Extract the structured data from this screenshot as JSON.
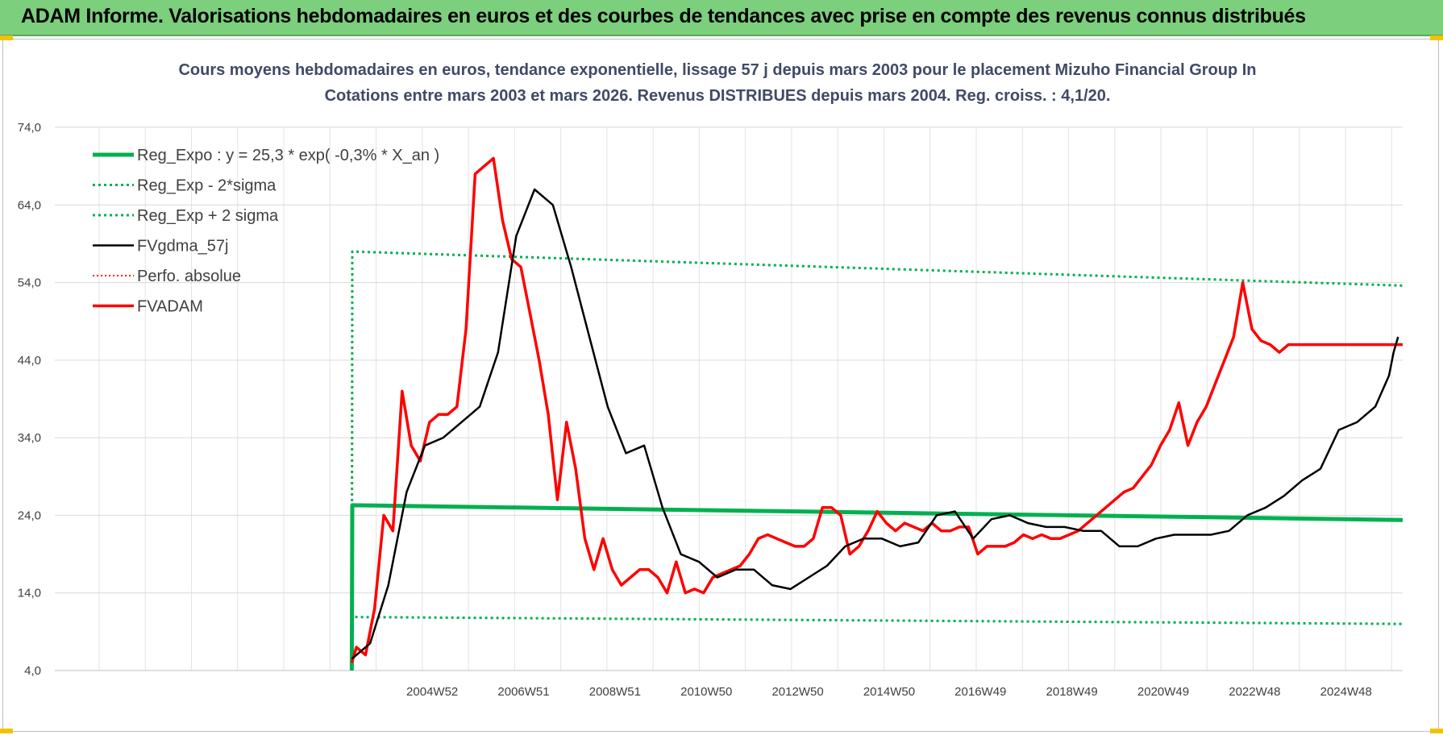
{
  "banner": {
    "title": "ADAM Informe. Valorisations hebdomadaires en euros et des courbes de tendances avec prise en compte des revenus connus distribués"
  },
  "colors": {
    "banner_bg": "#7ccf7c",
    "reg_expo": "#00b050",
    "sigma": "#00b050",
    "fvgdma": "#000000",
    "perfo": "#ff0000",
    "fvadam": "#ff0000"
  },
  "chart_data": {
    "type": "line",
    "title": "Cours moyens hebdomadaires en euros, tendance exponentielle, lissage 57 j depuis mars 2003 pour le placement Mizuho Financial Group In",
    "subtitle": "Cotations entre mars 2003 et mars 2026. Revenus DISTRIBUES depuis mars 2004. Reg. croiss. : 4,1/20.",
    "xlabel": "",
    "ylabel": "",
    "ylim": [
      4,
      74
    ],
    "y_ticks": [
      "4,0",
      "14,0",
      "24,0",
      "34,0",
      "44,0",
      "54,0",
      "64,0",
      "74,0"
    ],
    "x_ticks": [
      "2004W52",
      "2006W51",
      "2008W51",
      "2010W50",
      "2012W50",
      "2014W50",
      "2016W49",
      "2018W49",
      "2020W49",
      "2022W48",
      "2024W48"
    ],
    "x_range": [
      1996.7,
      2026.2
    ],
    "grid": true,
    "legend_position": "top-left",
    "series": [
      {
        "name": "Reg_Expo : y = 25,3 * exp( -0,3% *  X_an )",
        "style": "solid-thick",
        "x": [
          2003.2,
          2003.21,
          2026.2
        ],
        "y": [
          4.0,
          25.3,
          23.4
        ]
      },
      {
        "name": "Reg_Exp - 2*sigma",
        "style": "dotted",
        "x": [
          2003.2,
          2003.21,
          2026.2
        ],
        "y": [
          4.0,
          10.9,
          10.0
        ]
      },
      {
        "name": "Reg_Exp + 2 sigma",
        "style": "dotted",
        "x": [
          2003.2,
          2003.21,
          2026.2
        ],
        "y": [
          4.0,
          58.0,
          53.6
        ]
      },
      {
        "name": "FVgdma_57j",
        "style": "solid-thin",
        "x": [
          2003.2,
          2003.6,
          2004.0,
          2004.4,
          2004.8,
          2005.2,
          2005.6,
          2006.0,
          2006.4,
          2006.8,
          2007.2,
          2007.6,
          2008.0,
          2008.4,
          2008.8,
          2009.2,
          2009.6,
          2010.0,
          2010.4,
          2010.8,
          2011.2,
          2011.6,
          2012.0,
          2012.4,
          2012.8,
          2013.2,
          2013.6,
          2014.0,
          2014.4,
          2014.8,
          2015.2,
          2015.6,
          2016.0,
          2016.4,
          2016.8,
          2017.2,
          2017.6,
          2018.0,
          2018.4,
          2018.8,
          2019.2,
          2019.6,
          2020.0,
          2020.4,
          2020.8,
          2021.2,
          2021.6,
          2022.0,
          2022.4,
          2022.8,
          2023.2,
          2023.6,
          2024.0,
          2024.4,
          2024.8,
          2025.2,
          2025.6,
          2025.9,
          2026.0,
          2026.1
        ],
        "y": [
          5.5,
          7.5,
          15.0,
          27.0,
          33.0,
          34.0,
          36.0,
          38.0,
          45.0,
          60.0,
          66.0,
          64.0,
          56.0,
          47.0,
          38.0,
          32.0,
          33.0,
          25.0,
          19.0,
          18.0,
          16.0,
          17.0,
          17.0,
          15.0,
          14.5,
          16.0,
          17.5,
          20.0,
          21.0,
          21.0,
          20.0,
          20.5,
          24.0,
          24.5,
          21.0,
          23.5,
          24.0,
          23.0,
          22.5,
          22.5,
          22.0,
          22.0,
          20.0,
          20.0,
          21.0,
          21.5,
          21.5,
          21.5,
          22.0,
          24.0,
          25.0,
          26.5,
          28.5,
          30.0,
          35.0,
          36.0,
          38.0,
          42.0,
          45.0,
          47.0
        ]
      },
      {
        "name": "Perfo. absolue",
        "style": "dotted-red",
        "x": [],
        "y": []
      },
      {
        "name": "FVADAM",
        "style": "solid-red",
        "x": [
          2003.2,
          2003.3,
          2003.5,
          2003.7,
          2003.9,
          2004.1,
          2004.3,
          2004.5,
          2004.7,
          2004.9,
          2005.1,
          2005.3,
          2005.5,
          2005.7,
          2005.9,
          2006.1,
          2006.3,
          2006.5,
          2006.7,
          2006.9,
          2007.1,
          2007.3,
          2007.5,
          2007.7,
          2007.9,
          2008.1,
          2008.3,
          2008.5,
          2008.7,
          2008.9,
          2009.1,
          2009.3,
          2009.5,
          2009.7,
          2009.9,
          2010.1,
          2010.3,
          2010.5,
          2010.7,
          2010.9,
          2011.1,
          2011.3,
          2011.5,
          2011.7,
          2011.9,
          2012.1,
          2012.3,
          2012.5,
          2012.7,
          2012.9,
          2013.1,
          2013.3,
          2013.5,
          2013.7,
          2013.9,
          2014.1,
          2014.3,
          2014.5,
          2014.7,
          2014.9,
          2015.1,
          2015.3,
          2015.5,
          2015.7,
          2015.9,
          2016.1,
          2016.3,
          2016.5,
          2016.7,
          2016.9,
          2017.1,
          2017.3,
          2017.5,
          2017.7,
          2017.9,
          2018.1,
          2018.3,
          2018.5,
          2018.7,
          2018.9,
          2019.1,
          2019.3,
          2019.5,
          2019.7,
          2019.9,
          2020.1,
          2020.3,
          2020.5,
          2020.7,
          2020.9,
          2021.1,
          2021.3,
          2021.5,
          2021.7,
          2021.9,
          2022.1,
          2022.3,
          2022.5,
          2022.7,
          2022.9,
          2023.1,
          2023.3,
          2023.5,
          2023.7,
          2023.9,
          2024.1,
          2024.3,
          2024.5,
          2024.7,
          2024.9,
          2025.1,
          2025.3,
          2025.5,
          2025.7,
          2025.9,
          2026.0,
          2026.05,
          2026.1,
          2026.2
        ],
        "y": [
          5.0,
          7.0,
          6.0,
          12.0,
          24.0,
          22.0,
          40.0,
          33.0,
          31.0,
          36.0,
          37.0,
          37.0,
          38.0,
          48.0,
          68.0,
          69.0,
          70.0,
          62.0,
          57.0,
          56.0,
          50.0,
          44.0,
          37.0,
          26.0,
          36.0,
          30.0,
          21.0,
          17.0,
          21.0,
          17.0,
          15.0,
          16.0,
          17.0,
          17.0,
          16.0,
          14.0,
          18.0,
          14.0,
          14.5,
          14.0,
          16.0,
          16.5,
          17.0,
          17.5,
          19.0,
          21.0,
          21.5,
          21.0,
          20.5,
          20.0,
          20.0,
          21.0,
          25.0,
          25.0,
          24.0,
          19.0,
          20.0,
          22.0,
          24.5,
          23.0,
          22.0,
          23.0,
          22.5,
          22.0,
          23.0,
          22.0,
          22.0,
          22.5,
          22.5,
          19.0,
          20.0,
          20.0,
          20.0,
          20.5,
          21.5,
          21.0,
          21.5,
          21.0,
          21.0,
          21.5,
          22.0,
          23.0,
          24.0,
          25.0,
          26.0,
          27.0,
          27.5,
          29.0,
          30.5,
          33.0,
          35.0,
          38.5,
          33.0,
          36.0,
          38.0,
          41.0,
          44.0,
          47.0,
          54.0,
          48.0,
          46.5,
          46.0,
          45.0,
          46.0,
          46.0,
          46.0,
          46.0,
          46.0,
          46.0,
          46.0,
          46.0,
          46.0,
          46.0,
          46.0,
          46.0,
          46.0,
          46.0,
          46.0,
          46.0
        ]
      }
    ]
  }
}
